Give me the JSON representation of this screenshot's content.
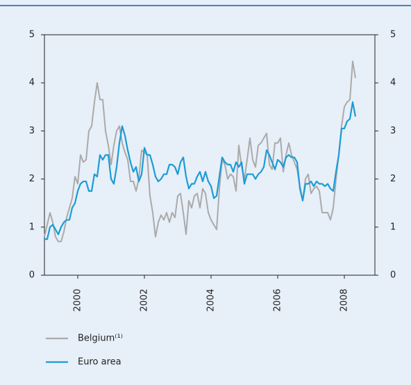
{
  "chart_data": {
    "type": "line",
    "x": [
      1999,
      1999.083,
      1999.167,
      1999.25,
      1999.333,
      1999.417,
      1999.5,
      1999.583,
      1999.667,
      1999.75,
      1999.833,
      1999.917,
      2000,
      2000.083,
      2000.167,
      2000.25,
      2000.333,
      2000.417,
      2000.5,
      2000.583,
      2000.667,
      2000.75,
      2000.833,
      2000.917,
      2001,
      2001.083,
      2001.167,
      2001.25,
      2001.333,
      2001.417,
      2001.5,
      2001.583,
      2001.667,
      2001.75,
      2001.833,
      2001.917,
      2002,
      2002.083,
      2002.167,
      2002.25,
      2002.333,
      2002.417,
      2002.5,
      2002.583,
      2002.667,
      2002.75,
      2002.833,
      2002.917,
      2003,
      2003.083,
      2003.167,
      2003.25,
      2003.333,
      2003.417,
      2003.5,
      2003.583,
      2003.667,
      2003.75,
      2003.833,
      2003.917,
      2004,
      2004.083,
      2004.167,
      2004.25,
      2004.333,
      2004.417,
      2004.5,
      2004.583,
      2004.667,
      2004.75,
      2004.833,
      2004.917,
      2005,
      2005.083,
      2005.167,
      2005.25,
      2005.333,
      2005.417,
      2005.5,
      2005.583,
      2005.667,
      2005.75,
      2005.833,
      2005.917,
      2006,
      2006.083,
      2006.167,
      2006.25,
      2006.333,
      2006.417,
      2006.5,
      2006.583,
      2006.667,
      2006.75,
      2006.833,
      2006.917,
      2007,
      2007.083,
      2007.167,
      2007.25,
      2007.333,
      2007.417,
      2007.5,
      2007.583,
      2007.667,
      2007.75,
      2007.833,
      2007.917,
      2008,
      2008.083,
      2008.167,
      2008.25,
      2008.333
    ],
    "series": [
      {
        "name": "Belgium⁽¹⁾",
        "color": "#aaaaaa",
        "values": [
          0.8,
          1.05,
          1.3,
          1.1,
          0.8,
          0.7,
          0.7,
          0.9,
          1.2,
          1.4,
          1.6,
          2.05,
          1.9,
          2.5,
          2.35,
          2.4,
          3.0,
          3.1,
          3.6,
          4.0,
          3.65,
          3.65,
          3.0,
          2.7,
          2.3,
          2.7,
          3.0,
          3.1,
          2.75,
          2.55,
          2.4,
          1.95,
          1.95,
          1.75,
          2.0,
          2.6,
          2.55,
          2.5,
          1.65,
          1.3,
          0.8,
          1.1,
          1.25,
          1.15,
          1.3,
          1.1,
          1.3,
          1.2,
          1.65,
          1.7,
          1.3,
          0.85,
          1.55,
          1.4,
          1.65,
          1.7,
          1.4,
          1.8,
          1.7,
          1.3,
          1.15,
          1.05,
          0.95,
          1.8,
          2.4,
          2.3,
          2.0,
          2.1,
          2.05,
          1.75,
          2.7,
          2.25,
          2.0,
          2.4,
          2.85,
          2.4,
          2.25,
          2.7,
          2.75,
          2.85,
          2.95,
          2.3,
          2.2,
          2.75,
          2.75,
          2.85,
          2.15,
          2.5,
          2.75,
          2.5,
          2.35,
          2.2,
          1.85,
          1.55,
          2.0,
          2.1,
          1.7,
          1.8,
          1.85,
          1.75,
          1.3,
          1.3,
          1.3,
          1.15,
          1.4,
          2.0,
          2.5,
          3.1,
          3.5,
          3.6,
          3.65,
          4.45,
          4.1
        ]
      },
      {
        "name": "Euro area",
        "color": "#1b9bd7",
        "values": [
          0.75,
          0.75,
          1.0,
          1.05,
          0.95,
          0.85,
          1.0,
          1.1,
          1.15,
          1.15,
          1.4,
          1.5,
          1.75,
          1.9,
          1.95,
          1.95,
          1.75,
          1.75,
          2.1,
          2.05,
          2.5,
          2.4,
          2.5,
          2.5,
          2.0,
          1.9,
          2.25,
          2.75,
          3.1,
          2.9,
          2.6,
          2.35,
          2.15,
          2.25,
          1.95,
          2.1,
          2.65,
          2.5,
          2.5,
          2.3,
          2.05,
          1.95,
          2.0,
          2.1,
          2.1,
          2.3,
          2.3,
          2.25,
          2.1,
          2.35,
          2.45,
          2.05,
          1.8,
          1.9,
          1.9,
          2.05,
          2.15,
          1.95,
          2.15,
          1.95,
          1.85,
          1.6,
          1.65,
          2.05,
          2.45,
          2.35,
          2.3,
          2.3,
          2.15,
          2.35,
          2.25,
          2.35,
          1.9,
          2.1,
          2.1,
          2.1,
          2.0,
          2.1,
          2.15,
          2.25,
          2.6,
          2.5,
          2.35,
          2.2,
          2.4,
          2.35,
          2.25,
          2.45,
          2.5,
          2.45,
          2.45,
          2.35,
          1.8,
          1.55,
          1.9,
          1.9,
          1.95,
          1.85,
          1.95,
          1.9,
          1.9,
          1.85,
          1.9,
          1.8,
          1.75,
          2.15,
          2.5,
          3.05,
          3.05,
          3.2,
          3.25,
          3.6,
          3.3
        ]
      }
    ],
    "xlim": [
      1999,
      2008.917
    ],
    "xticks": [
      2000,
      2002,
      2004,
      2006,
      2008
    ],
    "ylim": [
      0,
      5
    ],
    "yticks": [
      0,
      1,
      2,
      3,
      4,
      5
    ],
    "y2lim": [
      0,
      5
    ],
    "y2ticks": [
      0,
      1,
      2,
      3,
      4,
      5
    ],
    "grid": false
  }
}
